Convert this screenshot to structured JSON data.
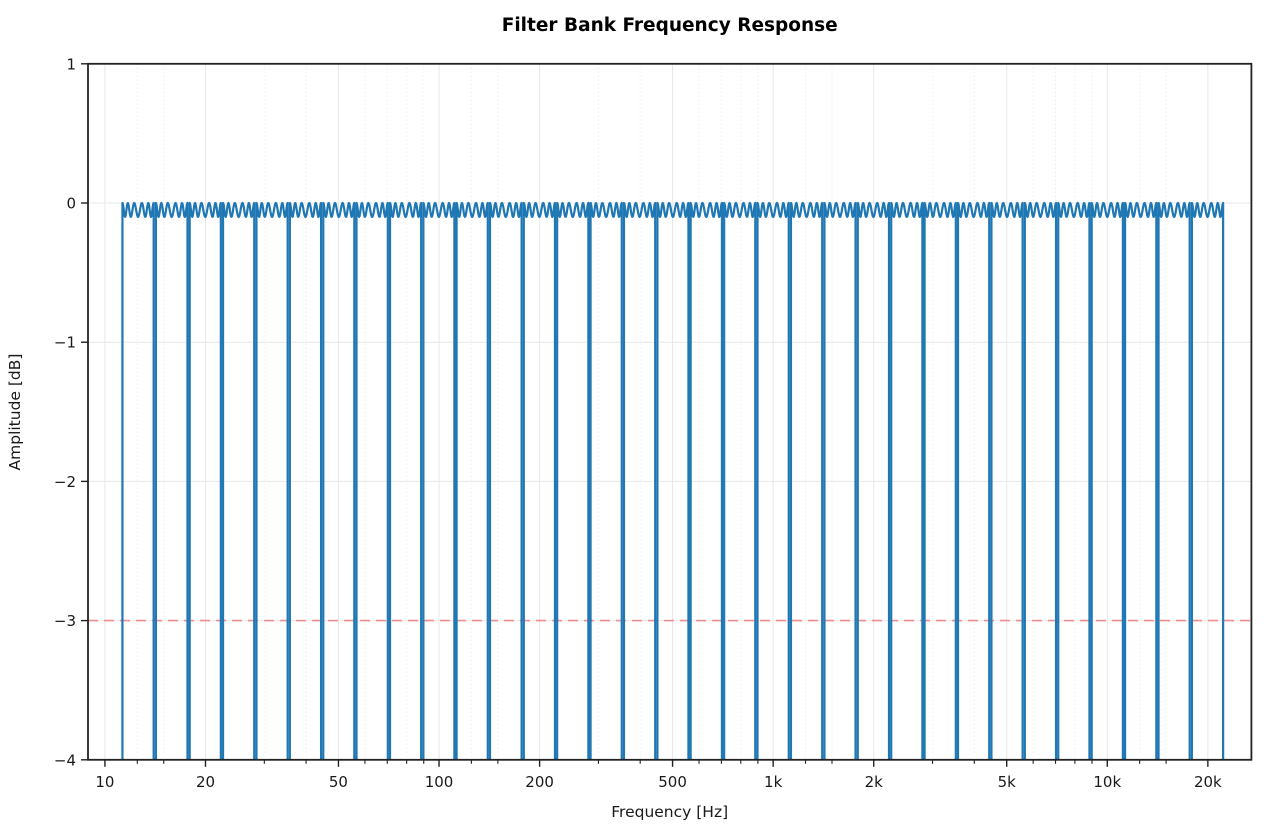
{
  "chart_data": {
    "type": "line",
    "title": "Filter Bank Frequency Response",
    "xlabel": "Frequency [Hz]",
    "ylabel": "Amplitude [dB]",
    "xscale": "log",
    "xlim": [
      8.9,
      27000
    ],
    "ylim": [
      -4,
      1
    ],
    "grid": true,
    "x_ticks": {
      "values": [
        10,
        20,
        50,
        100,
        200,
        500,
        1000,
        2000,
        5000,
        10000,
        20000
      ],
      "labels": [
        "10",
        "20",
        "50",
        "100",
        "200",
        "500",
        "1k",
        "2k",
        "5k",
        "10k",
        "20k"
      ]
    },
    "x_minor_ticks": [
      12.5,
      15,
      30,
      40,
      60,
      70,
      80,
      90,
      125,
      150,
      300,
      400,
      600,
      700,
      800,
      900,
      1250,
      1500,
      3000,
      4000,
      6000,
      7000,
      8000,
      9000,
      12500,
      15000
    ],
    "y_ticks": {
      "values": [
        1,
        0,
        -1,
        -2,
        -3,
        -4
      ],
      "labels": [
        "1",
        "0",
        "−1",
        "−2",
        "−3",
        "−4"
      ]
    },
    "series": [
      {
        "name": "third-octave-filter-bank-responses",
        "color": "#1f77b4",
        "linewidth": 2.2,
        "n_bands": 33,
        "band_center_freqs_hz": [
          12.5,
          16,
          20,
          25,
          31.5,
          40,
          50,
          63,
          80,
          100,
          125,
          160,
          200,
          250,
          315,
          400,
          500,
          630,
          800,
          1000,
          1250,
          1600,
          2000,
          2500,
          3150,
          4000,
          5000,
          6300,
          8000,
          10000,
          12500,
          16000,
          20000
        ],
        "band_edge_freqs_hz": [
          11.2,
          14.1,
          17.8,
          22.4,
          28.2,
          35.5,
          44.7,
          56.2,
          70.8,
          89.1,
          112,
          141,
          178,
          224,
          282,
          355,
          447,
          562,
          708,
          891,
          1122,
          1413,
          1778,
          2239,
          2818,
          3548,
          4467,
          5623,
          7079,
          8913,
          11220,
          14130,
          17780,
          22390
        ],
        "passband_ripple_db": {
          "max": 0.0,
          "min": -0.1,
          "cycles_per_band": 5
        },
        "stopband_clip_db": -4
      }
    ],
    "reference_line": {
      "y": -3,
      "color": "#ee8f8f",
      "style": "dashed"
    },
    "colors": {
      "line": "#1f77b4",
      "reference": "#ee8f8f",
      "grid_major": "#e7e7e7",
      "grid_minor": "#e7e7e7",
      "spine": "#222222",
      "text": "#1a1a1a"
    }
  }
}
